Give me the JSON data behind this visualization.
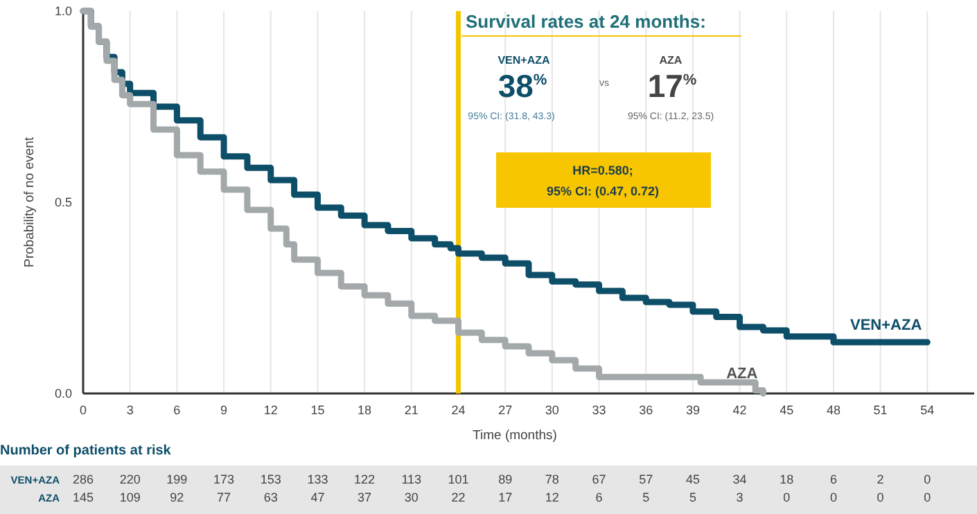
{
  "chart_data": {
    "type": "step",
    "xlabel": "Time (months)",
    "ylabel": "Probability of no event",
    "xlim": [
      0,
      57
    ],
    "xticks": [
      0,
      3,
      6,
      9,
      12,
      15,
      18,
      21,
      24,
      27,
      30,
      33,
      36,
      39,
      42,
      45,
      48,
      51,
      54
    ],
    "ylim": [
      0,
      1
    ],
    "yticks": [
      {
        "value": 0,
        "label": "0.0"
      },
      {
        "value": 0.5,
        "label": "0.5"
      },
      {
        "value": 1,
        "label": "1.0"
      }
    ],
    "grid": "x",
    "legend": false,
    "marker": "none",
    "line_style": "solid",
    "series": [
      {
        "name": "VEN+AZA",
        "color": "#0d4e68",
        "x": [
          0,
          0.5,
          1,
          1.5,
          2,
          2.5,
          3,
          4.5,
          6,
          7.5,
          9,
          10.5,
          12,
          13.5,
          15,
          16.5,
          18,
          19.5,
          21,
          22.5,
          23.5,
          24,
          25.5,
          27,
          28.5,
          30,
          31.5,
          33,
          34.5,
          36,
          37.5,
          39,
          40.5,
          42,
          43.5,
          45,
          46.5,
          48,
          54
        ],
        "values": [
          1.0,
          0.96,
          0.92,
          0.88,
          0.84,
          0.81,
          0.786,
          0.75,
          0.714,
          0.67,
          0.62,
          0.59,
          0.558,
          0.52,
          0.486,
          0.465,
          0.44,
          0.425,
          0.406,
          0.39,
          0.38,
          0.366,
          0.355,
          0.34,
          0.31,
          0.293,
          0.285,
          0.268,
          0.25,
          0.239,
          0.232,
          0.214,
          0.2,
          0.174,
          0.165,
          0.149,
          0.149,
          0.134,
          0.134
        ]
      },
      {
        "name": "AZA",
        "color": "#a3a8ab",
        "x": [
          0,
          0.5,
          1,
          1.5,
          2,
          2.5,
          3,
          4.5,
          6,
          7.5,
          9,
          10.5,
          12,
          13,
          13.5,
          15,
          16.5,
          18,
          19.5,
          21,
          22.5,
          24,
          25.5,
          27,
          28.5,
          30,
          31.5,
          33,
          39.5,
          43,
          43.5
        ],
        "values": [
          1.0,
          0.96,
          0.92,
          0.87,
          0.82,
          0.78,
          0.757,
          0.69,
          0.623,
          0.58,
          0.533,
          0.48,
          0.431,
          0.39,
          0.35,
          0.315,
          0.28,
          0.257,
          0.235,
          0.203,
          0.19,
          0.159,
          0.14,
          0.123,
          0.105,
          0.087,
          0.065,
          0.043,
          0.029,
          0.008,
          0.0
        ]
      }
    ],
    "ref_lines": [
      {
        "axis": "x",
        "value": 24,
        "color": "#f5c400"
      }
    ],
    "annotations": [
      "Survival rates at 24 months:",
      "VEN+AZA",
      "38$^{%}$",
      "vs",
      "AZA",
      "17$^{%}$",
      "95% CI: (31.8, 43.3)",
      "95% CI: (11.2, 23.5)",
      "HR=0.580;",
      "95% CI: (0.47, 0.72)",
      "Number of patients at risk",
      "VEN+AZA",
      "AZA",
      "286",
      "220",
      "199",
      "173",
      "153",
      "133",
      "122",
      "113",
      "101",
      "89",
      "78",
      "67",
      "57",
      "45",
      "34",
      "18",
      "6",
      "2",
      "0",
      "145",
      "109",
      "92",
      "77",
      "63",
      "47",
      "37",
      "30",
      "22",
      "17",
      "12",
      "6",
      "5",
      "5",
      "3",
      "0",
      "0",
      "0",
      "0"
    ]
  }
}
